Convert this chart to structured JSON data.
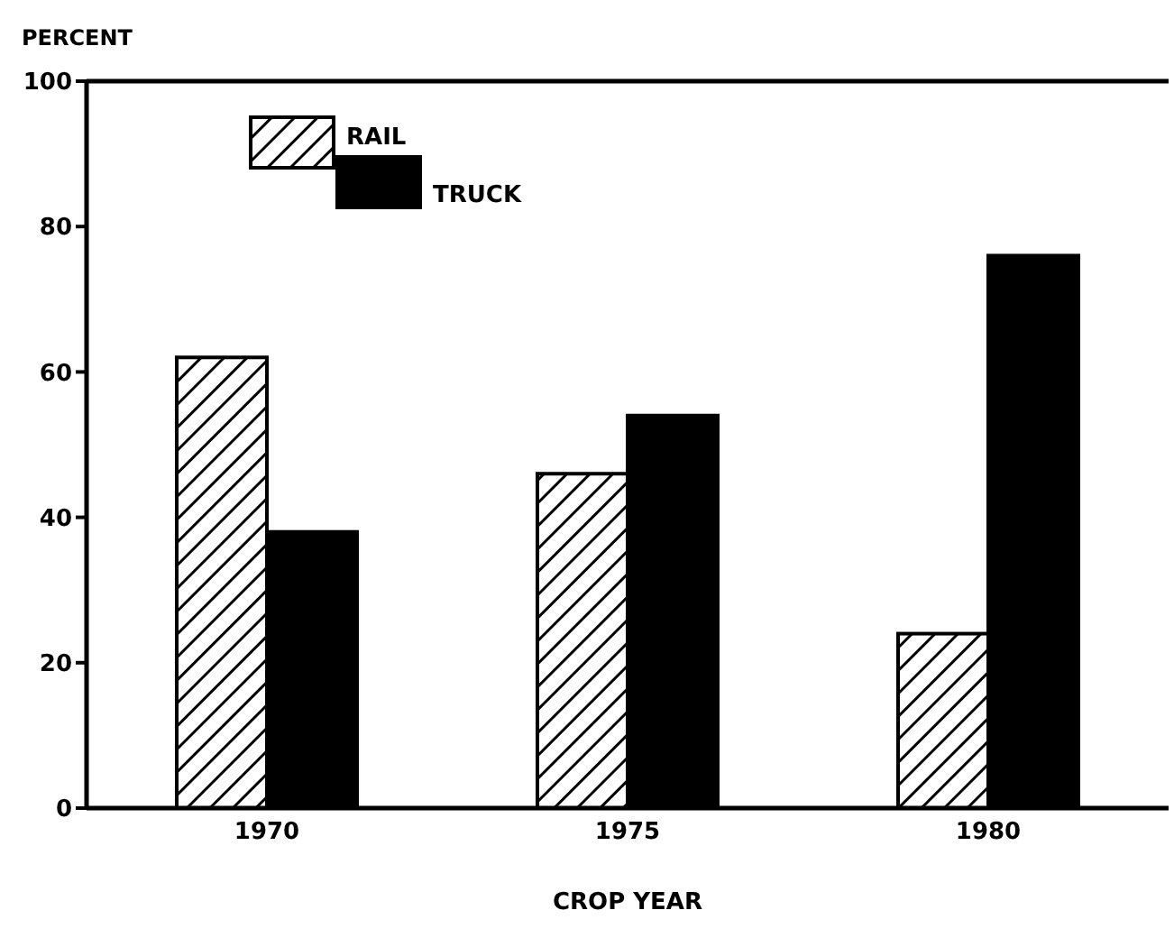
{
  "chart_data": {
    "type": "bar",
    "xlabel": "CROP YEAR",
    "ylabel": "PERCENT",
    "categories": [
      "1970",
      "1975",
      "1980"
    ],
    "series": [
      {
        "name": "RAIL",
        "color": "#ffffff",
        "values": [
          62,
          46,
          24
        ]
      },
      {
        "name": "TRUCK",
        "color": "#000000",
        "values": [
          38,
          54,
          76
        ]
      }
    ],
    "ylim": [
      0,
      100
    ],
    "yticks": [
      0,
      20,
      40,
      60,
      80,
      100
    ],
    "grid": false,
    "legend": "top left"
  }
}
